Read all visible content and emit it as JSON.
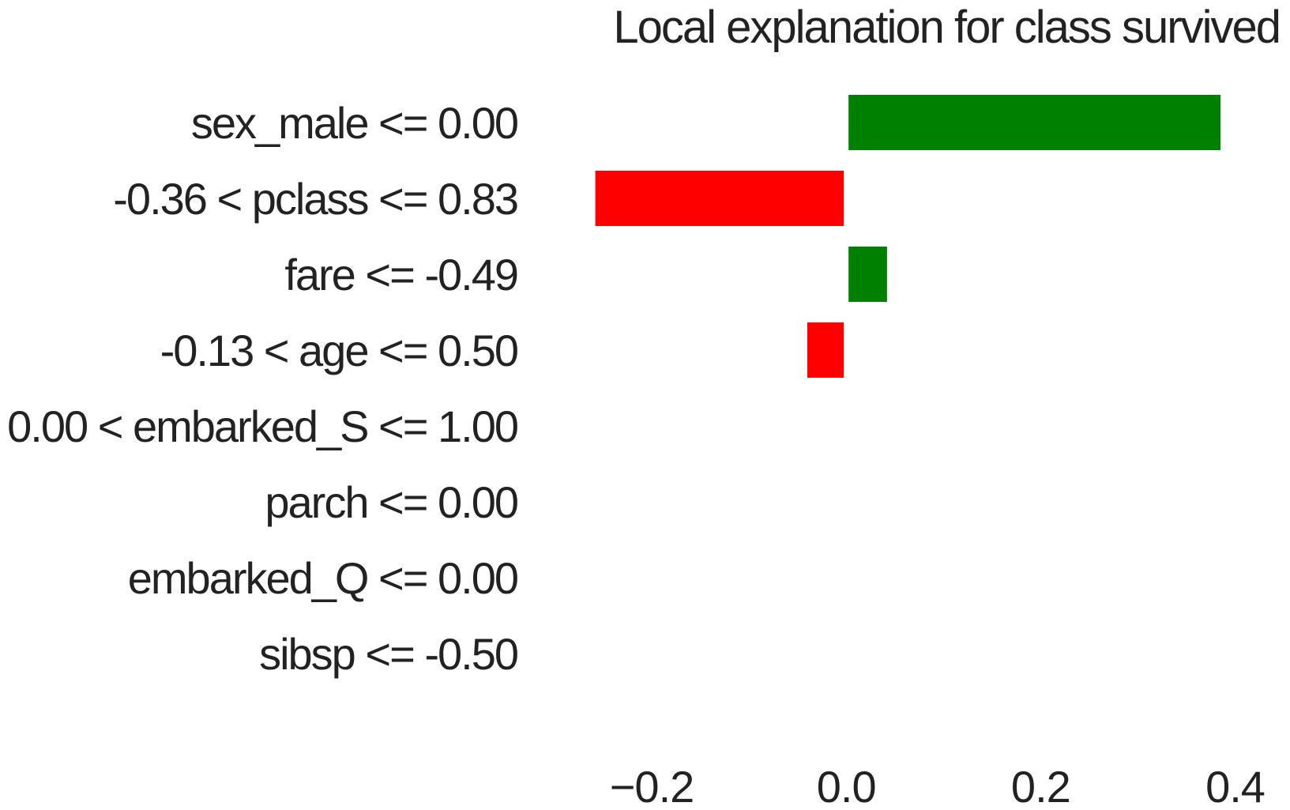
{
  "chart_data": {
    "type": "bar",
    "orientation": "horizontal",
    "title": "Local explanation for class survived",
    "xlabel": "",
    "ylabel": "",
    "categories": [
      "sex_male <= 0.00",
      "-0.36 < pclass <= 0.83",
      "fare <= -0.49",
      "-0.13 < age <= 0.50",
      "0.00 < embarked_S <= 1.00",
      "parch <= 0.00",
      "embarked_Q <= 0.00",
      "sibsp <= -0.50"
    ],
    "values": [
      0.385,
      -0.258,
      0.042,
      -0.04,
      0.0,
      0.0,
      0.0,
      0.0
    ],
    "xlim": [
      -0.265,
      0.415
    ],
    "xticks": [
      -0.2,
      0.0,
      0.2,
      0.4
    ],
    "xtick_labels": [
      "−0.2",
      "0.0",
      "0.2",
      "0.4"
    ],
    "grid": false,
    "colors": {
      "positive": "#008000",
      "negative": "#ff0000",
      "text": "#222222"
    }
  }
}
